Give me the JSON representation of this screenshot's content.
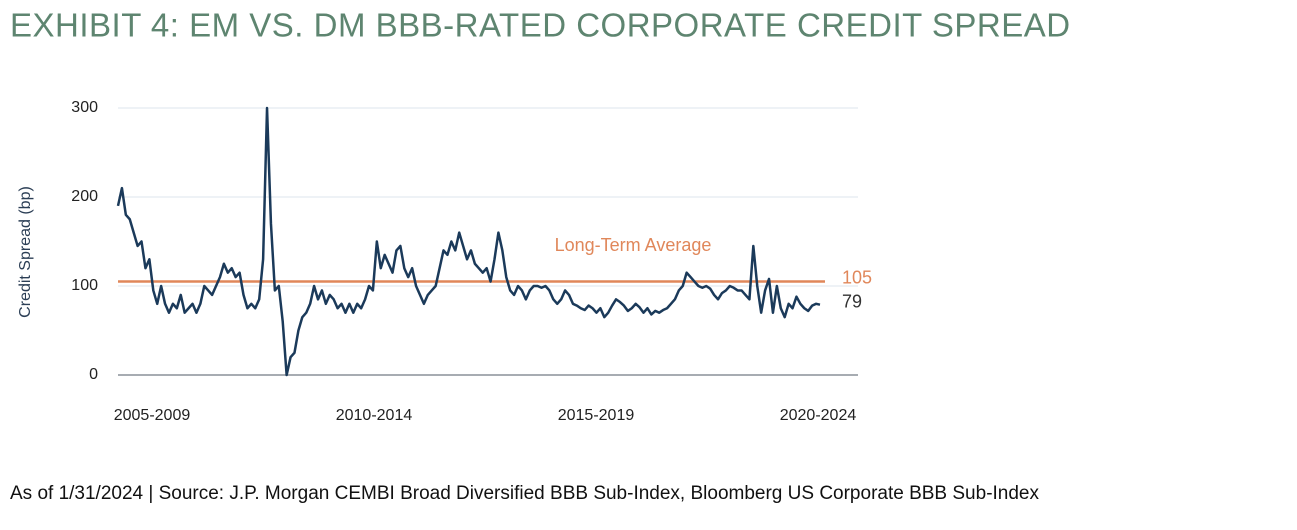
{
  "chart_data": {
    "type": "line",
    "title": "EXHIBIT 4: EM VS. DM BBB-RATED CORPORATE CREDIT SPREAD",
    "y_label": "Credit Spread (bp)",
    "x_labels": [
      "2005-2009",
      "2010-2014",
      "2015-2019",
      "2020-2024"
    ],
    "ylim": [
      0,
      300
    ],
    "yticks": [
      0,
      100,
      200,
      300
    ],
    "grid": true,
    "series": [
      {
        "color": "#1b3a5a",
        "values": [
          190,
          210,
          180,
          175,
          160,
          145,
          150,
          120,
          130,
          95,
          80,
          100,
          80,
          70,
          80,
          75,
          90,
          70,
          75,
          80,
          70,
          80,
          100,
          95,
          90,
          100,
          110,
          125,
          115,
          120,
          110,
          115,
          90,
          75,
          80,
          75,
          85,
          130,
          300,
          170,
          95,
          100,
          60,
          0,
          20,
          25,
          50,
          65,
          70,
          80,
          100,
          85,
          95,
          80,
          90,
          85,
          75,
          80,
          70,
          80,
          70,
          80,
          75,
          85,
          100,
          95,
          150,
          120,
          135,
          125,
          115,
          140,
          145,
          120,
          110,
          120,
          100,
          90,
          80,
          90,
          95,
          100,
          120,
          140,
          135,
          150,
          140,
          160,
          145,
          130,
          140,
          125,
          120,
          115,
          120,
          105,
          130,
          160,
          140,
          110,
          95,
          90,
          100,
          95,
          85,
          95,
          100,
          100,
          98,
          100,
          95,
          85,
          80,
          85,
          95,
          90,
          80,
          78,
          75,
          73,
          78,
          75,
          70,
          75,
          65,
          70,
          78,
          85,
          82,
          78,
          72,
          75,
          80,
          76,
          70,
          75,
          68,
          72,
          70,
          73,
          75,
          80,
          85,
          95,
          100,
          115,
          110,
          105,
          100,
          98,
          100,
          97,
          90,
          85,
          92,
          95,
          100,
          98,
          95,
          95,
          90,
          85,
          145,
          100,
          70,
          95,
          108,
          70,
          100,
          75,
          65,
          80,
          75,
          88,
          80,
          75,
          72,
          78,
          80,
          79
        ]
      }
    ],
    "average": {
      "label": "Long-Term Average",
      "value": 105,
      "color": "#e0875a"
    },
    "footnote": "As of 1/31/2024 | Source: J.P. Morgan CEMBI Broad Diversified BBB Sub-Index, Bloomberg US Corporate BBB Sub-Index"
  }
}
